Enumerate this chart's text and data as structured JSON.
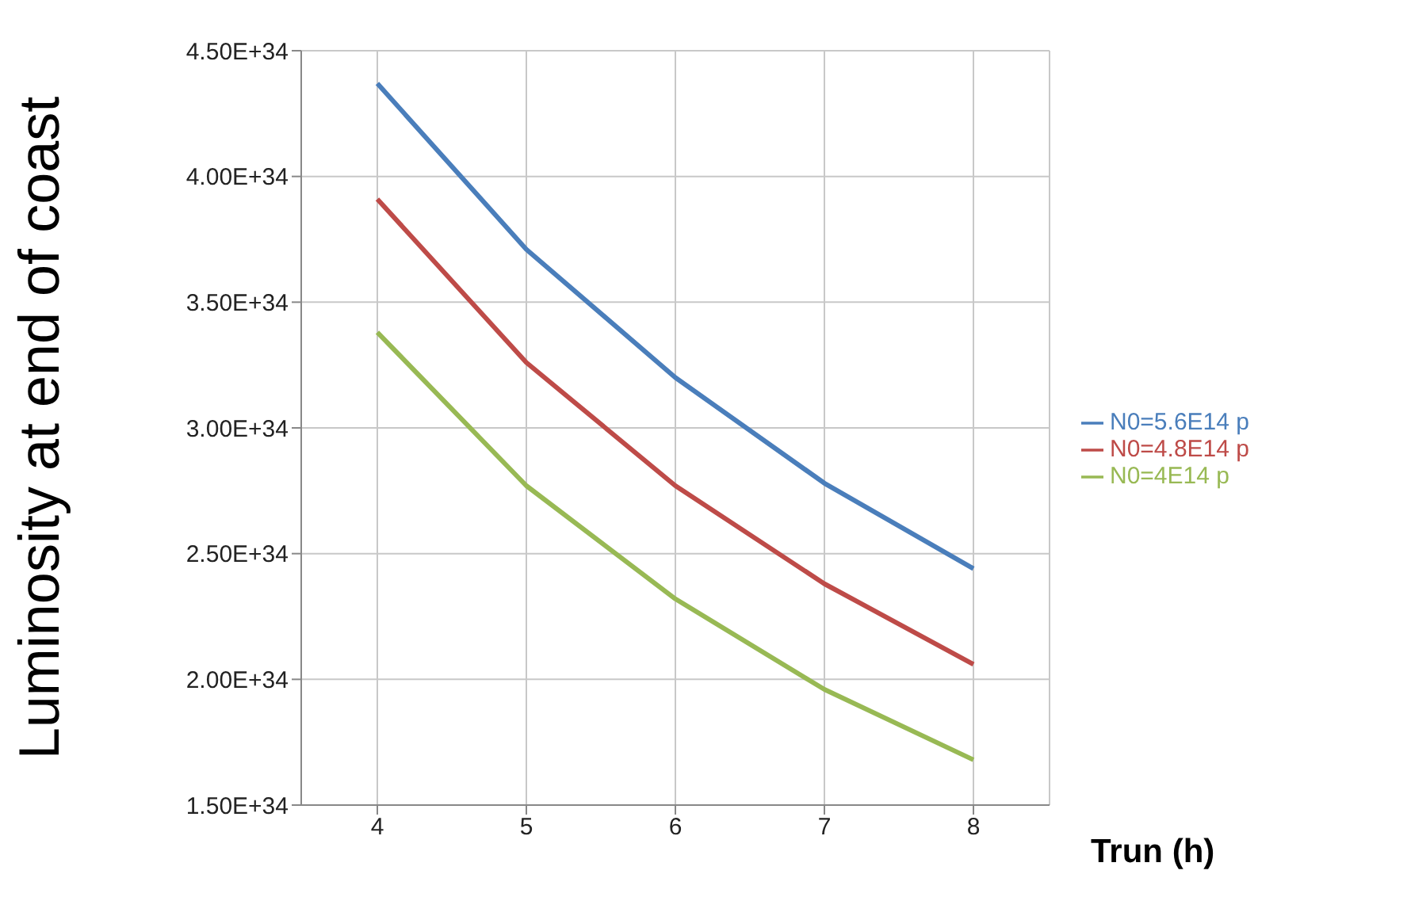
{
  "chart_data": {
    "type": "line",
    "xlabel": "Trun (h)",
    "ylabel": "Luminosity at end of coast",
    "categories": [
      "4",
      "5",
      "6",
      "7",
      "8"
    ],
    "series": [
      {
        "name": "N0=5.6E14 p",
        "color": "#4a7ebb",
        "values": [
          4.37e+34,
          3.71e+34,
          3.2e+34,
          2.78e+34,
          2.44e+34
        ]
      },
      {
        "name": "N0=4.8E14 p",
        "color": "#be4b48",
        "values": [
          3.91e+34,
          3.26e+34,
          2.77e+34,
          2.38e+34,
          2.06e+34
        ]
      },
      {
        "name": "N0=4E14 p",
        "color": "#98b954",
        "values": [
          3.38e+34,
          2.77e+34,
          2.32e+34,
          1.96e+34,
          1.68e+34
        ]
      }
    ],
    "ylim": [
      1.5e+34,
      4.5e+34
    ],
    "yticks": [
      {
        "value": 1.5e+34,
        "label": "1.50E+34"
      },
      {
        "value": 2e+34,
        "label": "2.00E+34"
      },
      {
        "value": 2.5e+34,
        "label": "2.50E+34"
      },
      {
        "value": 3e+34,
        "label": "3.00E+34"
      },
      {
        "value": 3.5e+34,
        "label": "3.50E+34"
      },
      {
        "value": 4e+34,
        "label": "4.00E+34"
      },
      {
        "value": 4.5e+34,
        "label": "4.50E+34"
      }
    ],
    "grid": true,
    "legend": "right",
    "marker": "none",
    "line_style": "solid"
  }
}
